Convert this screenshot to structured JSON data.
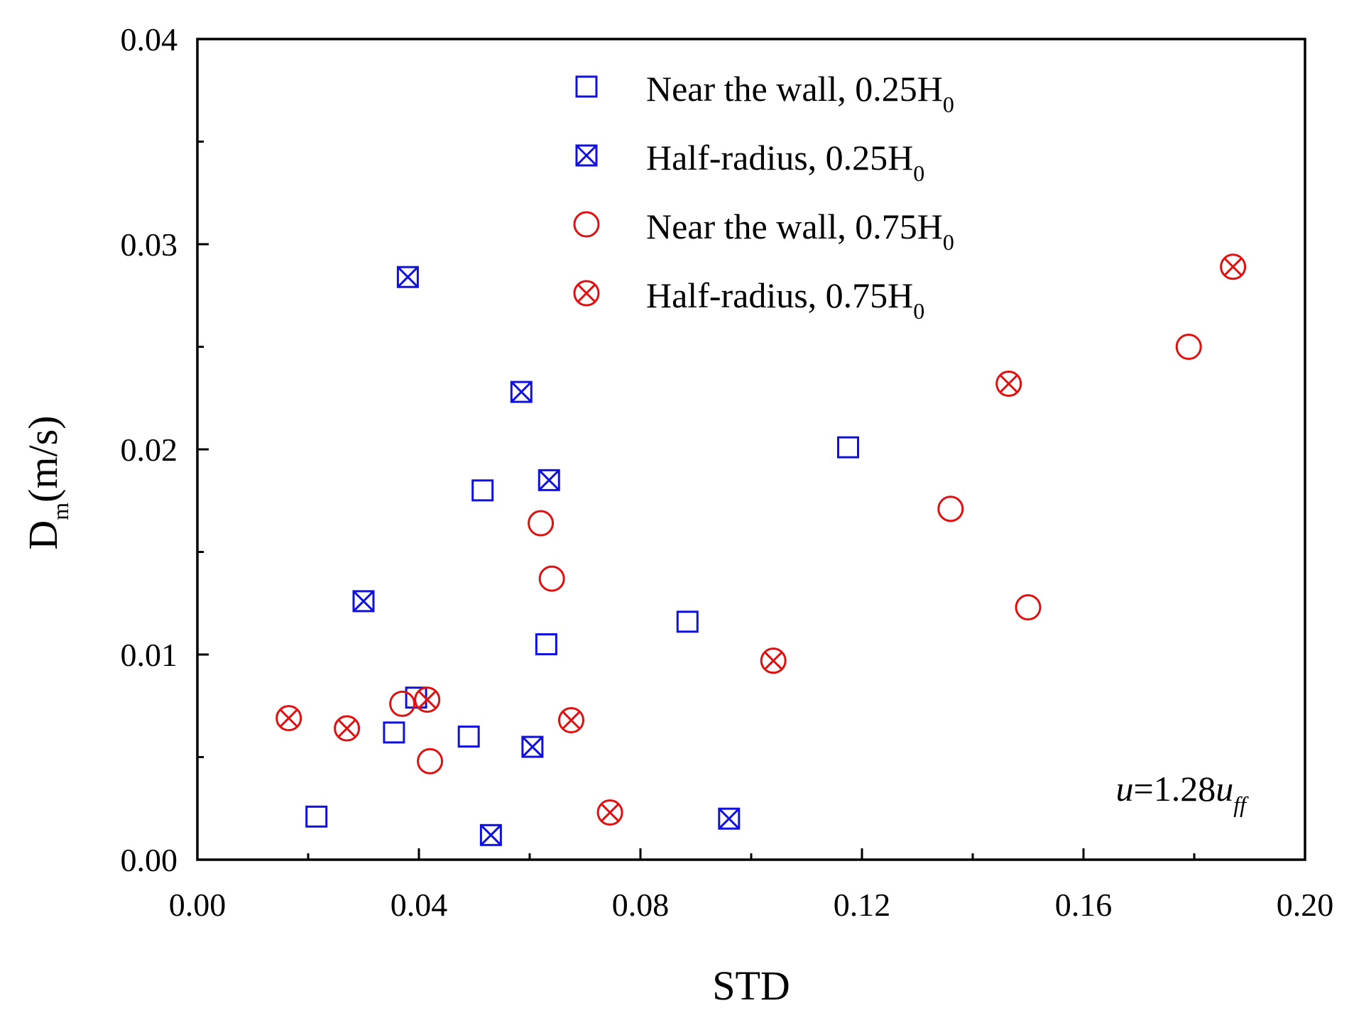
{
  "chart_data": {
    "type": "scatter",
    "xlabel": "STD",
    "ylabel": {
      "main": "D",
      "sub": "m",
      "tail": "(m/s)"
    },
    "xlim": [
      0,
      0.2
    ],
    "ylim": [
      0,
      0.04
    ],
    "x_ticks": [
      0.0,
      0.04,
      0.08,
      0.12,
      0.16,
      0.2
    ],
    "x_tick_labels": [
      "0.00",
      "0.04",
      "0.08",
      "0.12",
      "0.16",
      "0.20"
    ],
    "y_ticks": [
      0.0,
      0.01,
      0.02,
      0.03,
      0.04
    ],
    "y_tick_labels": [
      "0.00",
      "0.01",
      "0.02",
      "0.03",
      "0.04"
    ],
    "legend_placement": "top-center",
    "annotation": {
      "var": "u",
      "eq": "=1.28",
      "var2": "u",
      "sub": "ff"
    },
    "series": [
      {
        "name": "Near the wall, 0.25H0",
        "label_main": "Near the wall, 0.25H",
        "label_sub": "0",
        "marker": "square",
        "color": "#1010e0",
        "points": [
          [
            0.0215,
            0.0021
          ],
          [
            0.0355,
            0.0062
          ],
          [
            0.0395,
            0.0079
          ],
          [
            0.049,
            0.006
          ],
          [
            0.0515,
            0.018
          ],
          [
            0.063,
            0.0105
          ],
          [
            0.0885,
            0.0116
          ],
          [
            0.1175,
            0.0201
          ]
        ]
      },
      {
        "name": "Half-radius, 0.25H0",
        "label_main": "Half-radius, 0.25H",
        "label_sub": "0",
        "marker": "square-x",
        "color": "#1010e0",
        "points": [
          [
            0.03,
            0.0126
          ],
          [
            0.038,
            0.0284
          ],
          [
            0.053,
            0.0012
          ],
          [
            0.0585,
            0.0228
          ],
          [
            0.0605,
            0.0055
          ],
          [
            0.0635,
            0.0185
          ],
          [
            0.096,
            0.002
          ]
        ]
      },
      {
        "name": "Near the wall, 0.75H0",
        "label_main": "Near the wall, 0.75H",
        "label_sub": "0",
        "marker": "circle",
        "color": "#e01010",
        "points": [
          [
            0.037,
            0.0076
          ],
          [
            0.042,
            0.0048
          ],
          [
            0.062,
            0.0164
          ],
          [
            0.064,
            0.0137
          ],
          [
            0.136,
            0.0171
          ],
          [
            0.15,
            0.0123
          ],
          [
            0.179,
            0.025
          ]
        ]
      },
      {
        "name": "Half-radius, 0.75H0",
        "label_main": "Half-radius, 0.75H",
        "label_sub": "0",
        "marker": "circle-x",
        "color": "#e01010",
        "points": [
          [
            0.0165,
            0.0069
          ],
          [
            0.027,
            0.0064
          ],
          [
            0.0415,
            0.0078
          ],
          [
            0.0675,
            0.0068
          ],
          [
            0.0745,
            0.0023
          ],
          [
            0.104,
            0.0097
          ],
          [
            0.1465,
            0.0232
          ],
          [
            0.187,
            0.0289
          ]
        ]
      }
    ]
  }
}
